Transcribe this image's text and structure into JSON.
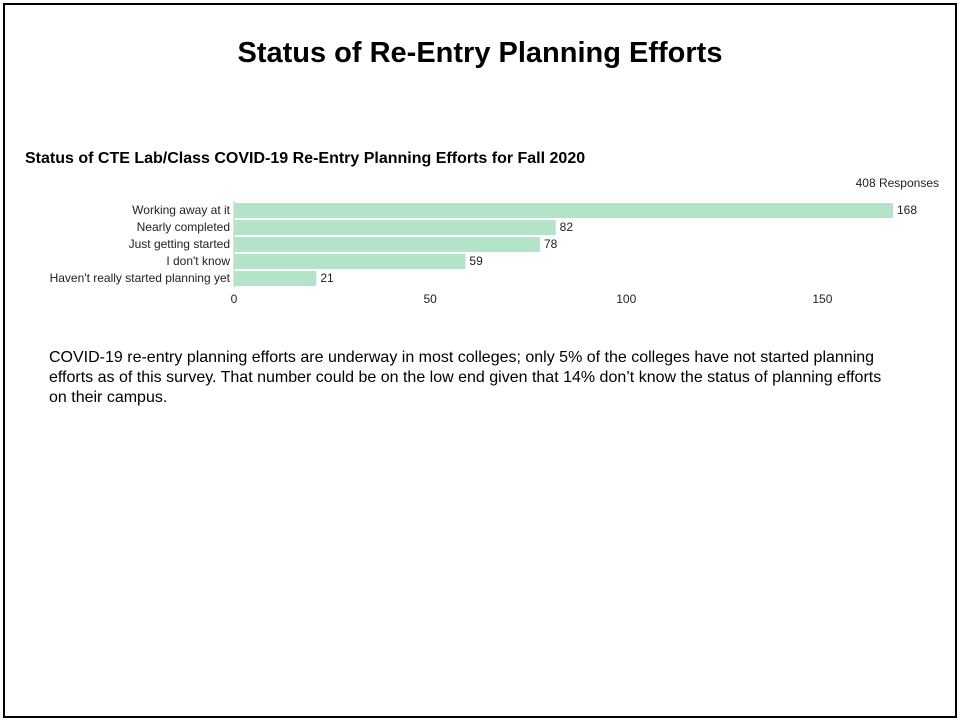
{
  "slide": {
    "title": "Status of Re-Entry Planning Efforts",
    "body": "COVID-19 re-entry planning efforts are underway in most colleges; only 5% of the colleges have not started planning efforts as of this survey. That number could be on the low end given that 14% don’t know the status of planning efforts on their campus."
  },
  "chart_data": {
    "type": "bar",
    "orientation": "horizontal",
    "title": "Status of CTE Lab/Class COVID-19 Re-Entry Planning Efforts for Fall 2020",
    "responses_label": "408 Responses",
    "categories": [
      "Working away at it",
      "Nearly completed",
      "Just getting started",
      "I don't know",
      "Haven't really started planning yet"
    ],
    "values": [
      168,
      82,
      78,
      59,
      21
    ],
    "xlim": [
      0,
      168
    ],
    "xticks": [
      0,
      50,
      100,
      150
    ],
    "grid": false,
    "bar_color": "#b3e3c9"
  }
}
